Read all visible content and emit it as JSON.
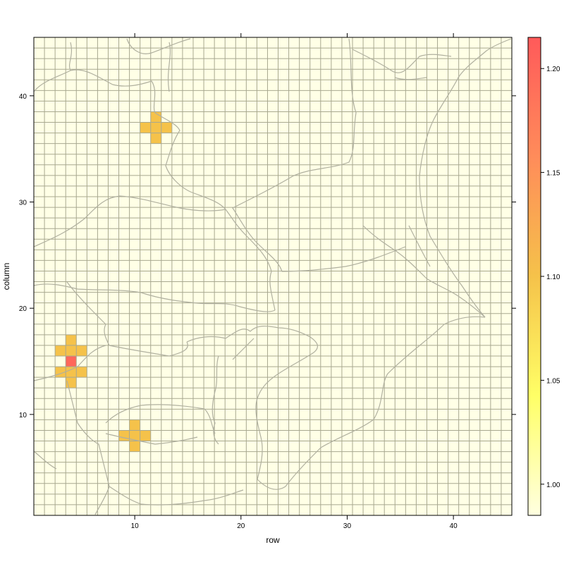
{
  "chart_data": {
    "type": "heatmap",
    "title": "",
    "xlabel": "row",
    "ylabel": "column",
    "xlim": [
      0.5,
      45.5
    ],
    "ylim": [
      0.5,
      45.5
    ],
    "x_ticks": [
      10,
      20,
      30,
      40
    ],
    "y_ticks": [
      10,
      20,
      30,
      40
    ],
    "grid_n": 45,
    "background_value": 1.0,
    "cells": [
      {
        "row": 12,
        "column": 38,
        "value": 1.1
      },
      {
        "row": 11,
        "column": 37,
        "value": 1.1
      },
      {
        "row": 12,
        "column": 37,
        "value": 1.1
      },
      {
        "row": 13,
        "column": 37,
        "value": 1.1
      },
      {
        "row": 12,
        "column": 36,
        "value": 1.1
      },
      {
        "row": 4,
        "column": 17,
        "value": 1.1
      },
      {
        "row": 3,
        "column": 16,
        "value": 1.1
      },
      {
        "row": 4,
        "column": 16,
        "value": 1.1
      },
      {
        "row": 5,
        "column": 16,
        "value": 1.1
      },
      {
        "row": 4,
        "column": 15,
        "value": 1.2
      },
      {
        "row": 3,
        "column": 14,
        "value": 1.1
      },
      {
        "row": 4,
        "column": 14,
        "value": 1.1
      },
      {
        "row": 5,
        "column": 14,
        "value": 1.1
      },
      {
        "row": 4,
        "column": 13,
        "value": 1.1
      },
      {
        "row": 10,
        "column": 9,
        "value": 1.1
      },
      {
        "row": 9,
        "column": 8,
        "value": 1.1
      },
      {
        "row": 10,
        "column": 8,
        "value": 1.1
      },
      {
        "row": 11,
        "column": 8,
        "value": 1.1
      },
      {
        "row": 10,
        "column": 7,
        "value": 1.1
      }
    ],
    "colorkey": {
      "range": [
        0.985,
        1.215
      ],
      "ticks": [
        1.0,
        1.05,
        1.1,
        1.15,
        1.2
      ],
      "tick_labels": [
        "1.00",
        "1.05",
        "1.10",
        "1.15",
        "1.20"
      ],
      "colors": [
        "#FFFFE0",
        "#FFFF66",
        "#F5C24A",
        "#FF8C5A",
        "#FF5A5A"
      ]
    },
    "background_color": "#FFFFE6",
    "grid_line_color": "#A8A890",
    "map_line_color": "#B0B0A0"
  }
}
